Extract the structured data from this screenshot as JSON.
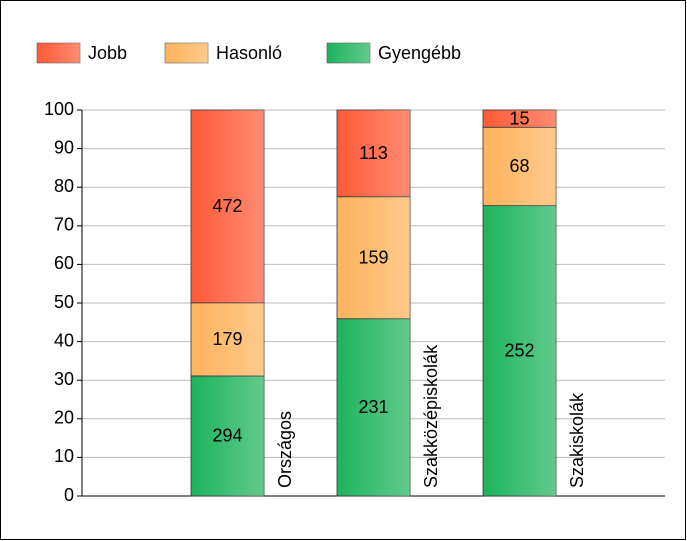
{
  "chart_data": {
    "type": "bar",
    "stacking": "percent",
    "categories": [
      "Országos",
      "Szakközépiskolák",
      "Szakiskolák"
    ],
    "series": [
      {
        "name": "Jobb",
        "color": "#ff5a36",
        "values": [
          472,
          113,
          15
        ]
      },
      {
        "name": "Hasonló",
        "color": "#ffb35c",
        "values": [
          179,
          159,
          68
        ]
      },
      {
        "name": "Gyengébb",
        "color": "#1db35c",
        "values": [
          294,
          231,
          252
        ]
      }
    ],
    "ylim": [
      0,
      100
    ],
    "yticks": [
      0,
      10,
      20,
      30,
      40,
      50,
      60,
      70,
      80,
      90,
      100
    ],
    "grid": true,
    "legend": "top"
  }
}
